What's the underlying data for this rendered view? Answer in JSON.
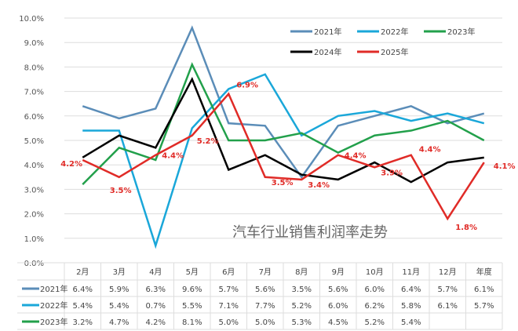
{
  "chart_data": {
    "type": "line",
    "title": "汽车行业销售利润率走势",
    "categories": [
      "2月",
      "3月",
      "4月",
      "5月",
      "6月",
      "7月",
      "8月",
      "9月",
      "10月",
      "11月",
      "12月",
      "年度"
    ],
    "ylim": [
      0,
      10
    ],
    "yticks": [
      "0.0%",
      "1.0%",
      "2.0%",
      "3.0%",
      "4.0%",
      "5.0%",
      "6.0%",
      "7.0%",
      "8.0%",
      "9.0%",
      "10.0%"
    ],
    "grid": true,
    "legend": "top-right",
    "series": [
      {
        "name": "2021年",
        "color": "#5b8db8",
        "values": [
          6.4,
          5.9,
          6.3,
          9.6,
          5.7,
          5.6,
          3.5,
          5.6,
          6.0,
          6.4,
          5.7,
          6.1
        ],
        "table": [
          "6.4%",
          "5.9%",
          "6.3%",
          "9.6%",
          "5.7%",
          "5.6%",
          "3.5%",
          "5.6%",
          "6.0%",
          "6.4%",
          "5.7%",
          "6.1%"
        ]
      },
      {
        "name": "2022年",
        "color": "#1aa7d9",
        "values": [
          5.4,
          5.4,
          0.7,
          5.5,
          7.1,
          7.7,
          5.2,
          6.0,
          6.2,
          5.8,
          6.1,
          5.7
        ],
        "table": [
          "5.4%",
          "5.4%",
          "0.7%",
          "5.5%",
          "7.1%",
          "7.7%",
          "5.2%",
          "6.0%",
          "6.2%",
          "5.8%",
          "6.1%",
          "5.7%"
        ]
      },
      {
        "name": "2023年",
        "color": "#22a04b",
        "values": [
          3.2,
          4.7,
          4.2,
          8.1,
          5.0,
          5.0,
          5.3,
          4.5,
          5.2,
          5.4,
          5.8,
          5.0
        ],
        "table": [
          "3.2%",
          "4.7%",
          "4.2%",
          "8.1%",
          "5.0%",
          "5.0%",
          "5.3%",
          "4.5%",
          "5.2%",
          "5.4%",
          "",
          ""
        ]
      },
      {
        "name": "2024年",
        "color": "#000000",
        "values": [
          4.3,
          5.2,
          4.7,
          7.5,
          3.8,
          4.4,
          3.6,
          3.4,
          4.1,
          3.3,
          4.1,
          4.3
        ]
      },
      {
        "name": "2025年",
        "color": "#e02b27",
        "values": [
          4.2,
          3.5,
          4.4,
          5.2,
          6.9,
          3.5,
          3.4,
          4.4,
          3.9,
          4.4,
          1.8,
          4.1
        ],
        "data_labels": [
          "4.2%",
          "3.5%",
          "4.4%",
          "5.2%",
          "6.9%",
          "3.5%",
          "3.4%",
          "4.4%",
          "3.9%",
          "4.4%",
          "1.8%",
          "4.1%"
        ]
      }
    ]
  }
}
